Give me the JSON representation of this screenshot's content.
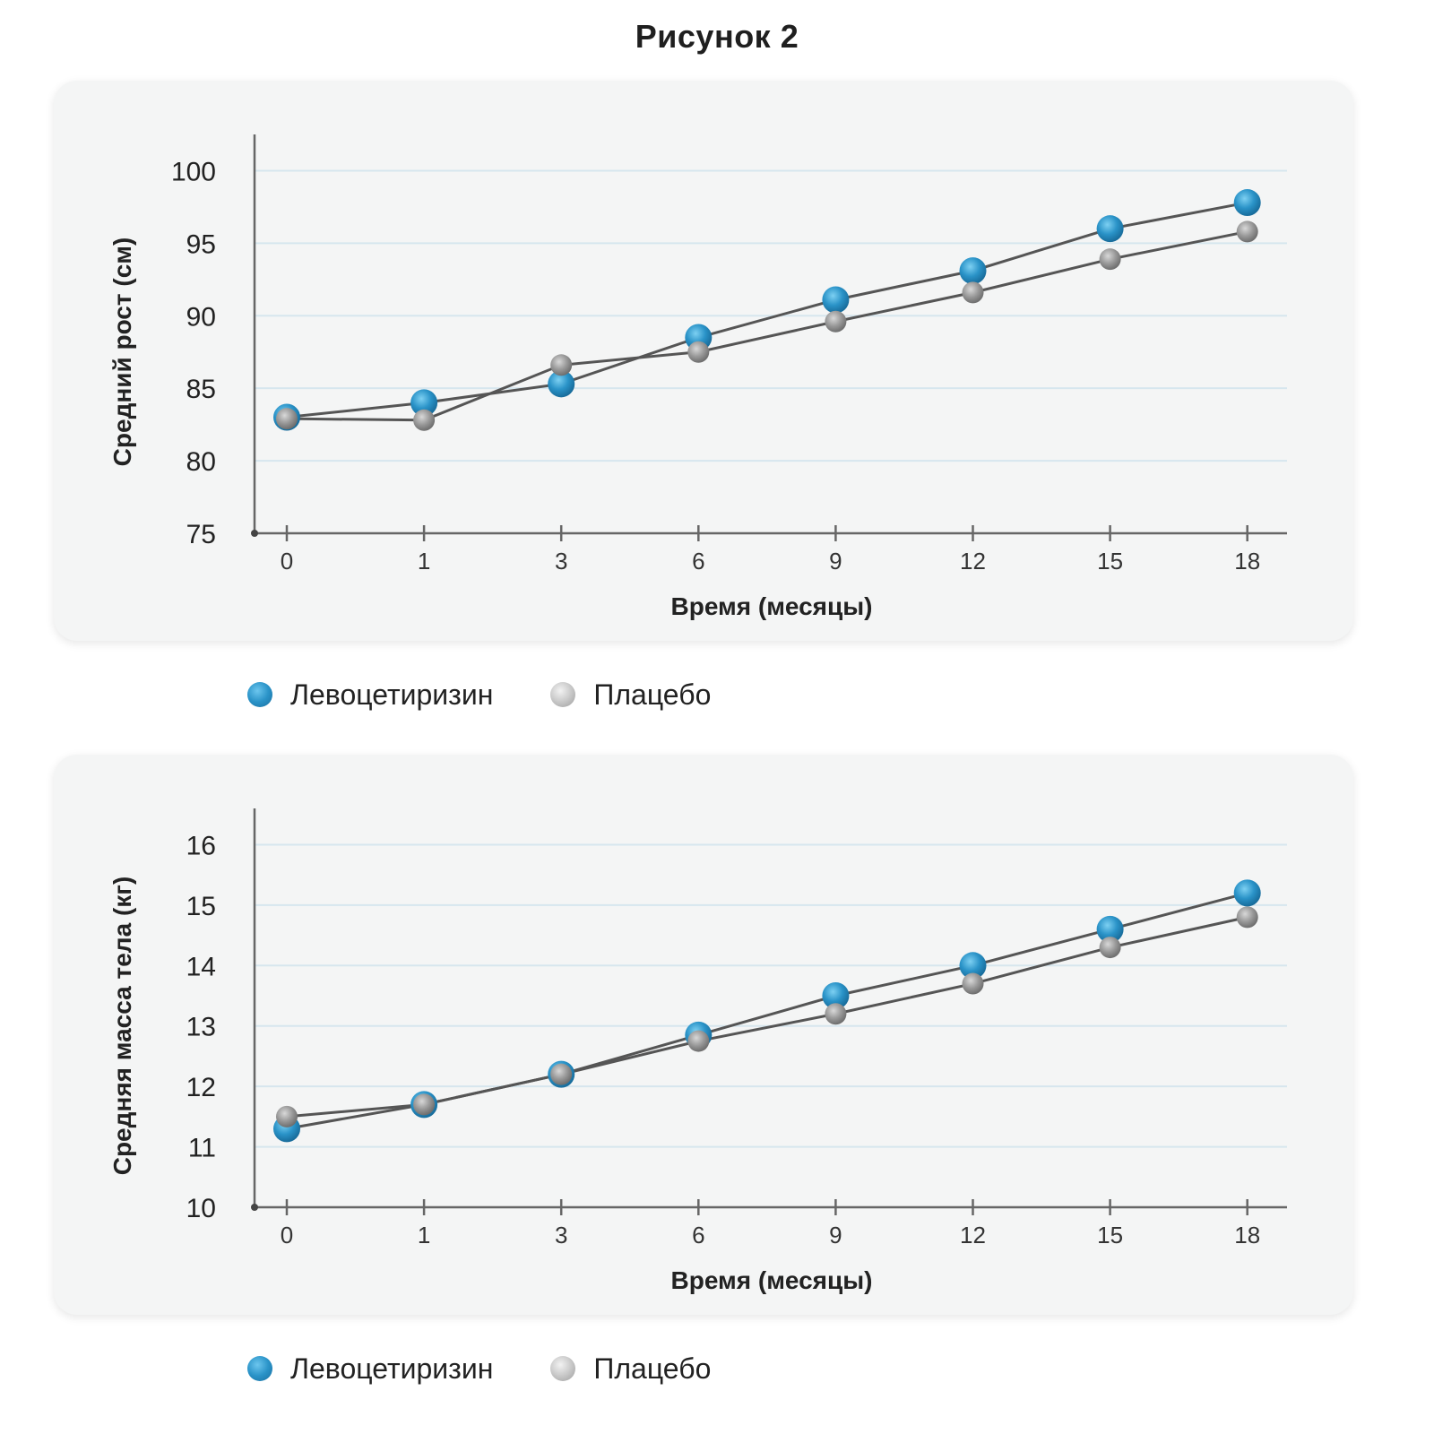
{
  "figure_title": "Рисунок 2",
  "legend_labels": {
    "series_a": "Левоцетиризин",
    "series_b": "Плацебо"
  },
  "colors": {
    "series_a": "#2a93c8",
    "series_b": "#9a9a9a",
    "line": "#555555",
    "grid": "#d6e6ee",
    "panel": "#f4f5f5"
  },
  "chart_data": [
    {
      "type": "line",
      "xlabel": "Время (месяцы)",
      "ylabel": "Средний рост (см)",
      "categories": [
        "0",
        "1",
        "3",
        "6",
        "9",
        "12",
        "15",
        "18"
      ],
      "yticks": [
        "75",
        "80",
        "85",
        "90",
        "95",
        "100"
      ],
      "ylim": [
        75,
        102.5
      ],
      "grid": true,
      "legend_position": "below",
      "series": [
        {
          "name": "Левоцетиризин",
          "values": [
            83.0,
            84.0,
            85.3,
            88.5,
            91.1,
            93.1,
            96.0,
            97.8
          ]
        },
        {
          "name": "Плацебо",
          "values": [
            82.9,
            82.8,
            86.6,
            87.5,
            89.6,
            91.6,
            93.9,
            95.8
          ]
        }
      ]
    },
    {
      "type": "line",
      "xlabel": "Время (месяцы)",
      "ylabel": "Средняя масса тела (кг)",
      "categories": [
        "0",
        "1",
        "3",
        "6",
        "9",
        "12",
        "15",
        "18"
      ],
      "yticks": [
        "10",
        "11",
        "12",
        "13",
        "14",
        "15",
        "16"
      ],
      "ylim": [
        10,
        16.6
      ],
      "grid": true,
      "legend_position": "below",
      "series": [
        {
          "name": "Левоцетиризин",
          "values": [
            11.3,
            11.7,
            12.2,
            12.85,
            13.5,
            14.0,
            14.6,
            15.2
          ]
        },
        {
          "name": "Плацебо",
          "values": [
            11.5,
            11.7,
            12.2,
            12.75,
            13.2,
            13.7,
            14.3,
            14.8
          ]
        }
      ]
    }
  ]
}
